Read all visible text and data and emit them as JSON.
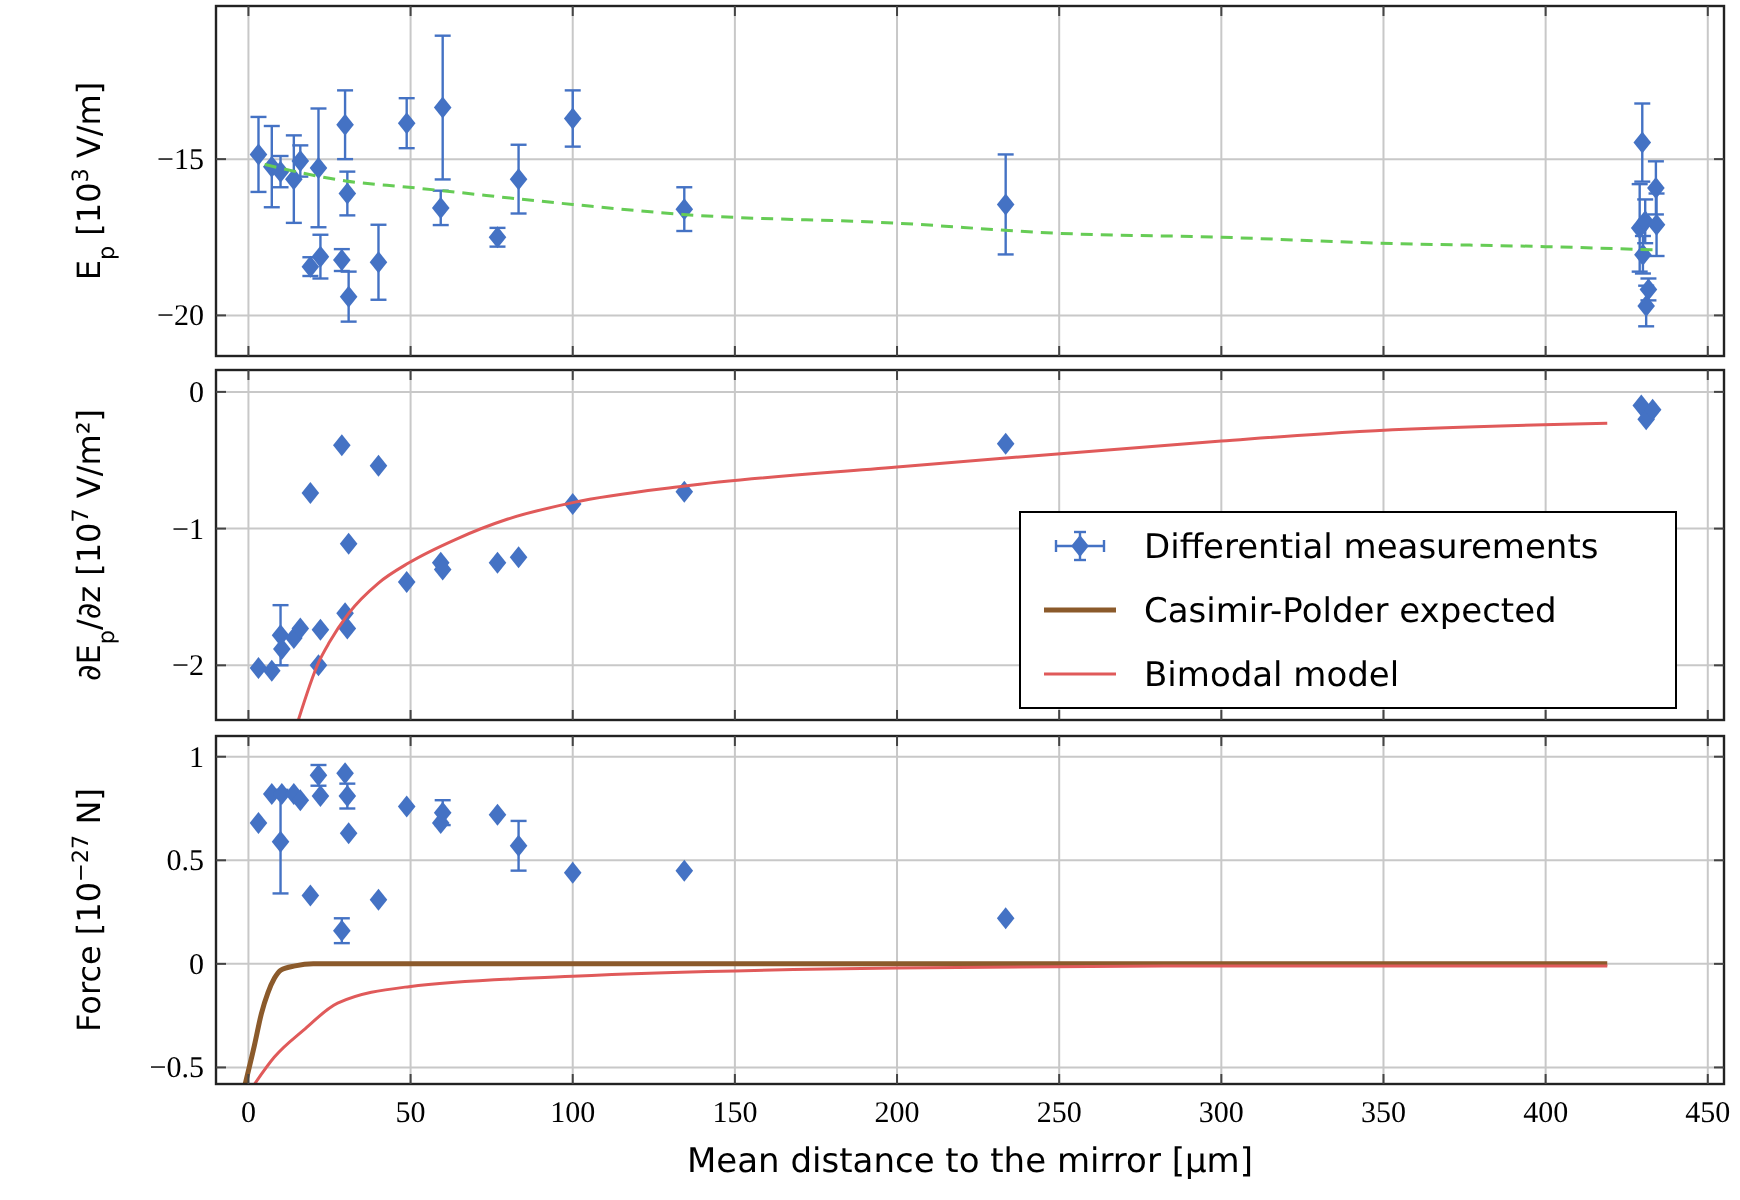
{
  "chart_data": [
    {
      "type": "scatter",
      "ylabel": "E$_{p}$ [10$^{3}$ V/m]",
      "xlim": [
        -10,
        455
      ],
      "xticks": [
        0,
        50,
        100,
        150,
        200,
        250,
        300,
        350,
        400,
        450
      ],
      "ylim": [
        -21.3,
        -10.1
      ],
      "yticks": [
        -20,
        -15
      ],
      "grid": true,
      "tick_labels": "y",
      "series": [
        {
          "marker": "diamond",
          "color": "#4472c4",
          "x": [
            3.1,
            7.2,
            9.9,
            14,
            16,
            21.6,
            29.8,
            30.5,
            19.1,
            22.2,
            28.8,
            30.9,
            40.1,
            48.8,
            59.3,
            59.9,
            76.8,
            83.3,
            100,
            134.4,
            233.5,
            429.8,
            434,
            429,
            430.7,
            434.2,
            430,
            431.7,
            431
          ],
          "values": [
            -14.85,
            -15.24,
            -15.4,
            -15.64,
            -15.06,
            -15.28,
            -13.9,
            -16.1,
            -18.44,
            -18.12,
            -18.23,
            -19.4,
            -18.3,
            -13.85,
            -16.56,
            -13.35,
            -17.5,
            -15.64,
            -13.7,
            -16.6,
            -16.45,
            -14.47,
            -15.92,
            -17.2,
            -16.99,
            -17.1,
            -18.06,
            -19.17,
            -19.7
          ],
          "errors": [
            1.2,
            1.3,
            0.5,
            1.4,
            0.5,
            1.9,
            1.1,
            0.7,
            0.3,
            0.7,
            0.35,
            0.8,
            1.2,
            0.8,
            0.55,
            2.3,
            0.3,
            1.1,
            0.9,
            0.7,
            1.6,
            1.25,
            0.85,
            1.4,
            0.7,
            1,
            0.6,
            0.35,
            0.65
          ]
        },
        {
          "type": "line",
          "color": "#66cc55",
          "line_style": "dashed",
          "x": [
            5,
            30,
            49.5,
            100,
            134,
            200,
            249,
            300,
            349,
            400,
            433
          ],
          "values": [
            -15.17,
            -15.7,
            -15.9,
            -16.45,
            -16.77,
            -17.05,
            -17.37,
            -17.5,
            -17.69,
            -17.8,
            -17.9
          ]
        }
      ]
    },
    {
      "type": "scatter",
      "ylabel": "∂E$_{p}$/∂z [10$^{7}$ V/m²]",
      "xlim": [
        -10,
        455
      ],
      "xticks": [
        0,
        50,
        100,
        150,
        200,
        250,
        300,
        350,
        400,
        450
      ],
      "ylim": [
        -2.4,
        0.16
      ],
      "yticks": [
        -2,
        -1,
        0
      ],
      "grid": true,
      "tick_labels": "y",
      "legend": "bottom right",
      "series": [
        {
          "marker": "diamond",
          "name": "Differential measurements",
          "color": "#4472c4",
          "x": [
            3.1,
            7.2,
            9.9,
            10.3,
            14,
            16,
            19.1,
            21.6,
            22.2,
            28.8,
            29.8,
            30.5,
            30.9,
            40.1,
            48.8,
            59.3,
            59.9,
            76.8,
            83.3,
            100,
            134.4,
            233.5,
            429.5,
            431,
            433
          ],
          "values": [
            -2.02,
            -2.04,
            -1.78,
            -1.88,
            -1.8,
            -1.73,
            -0.74,
            -2.0,
            -1.74,
            -0.39,
            -1.62,
            -1.73,
            -1.11,
            -0.54,
            -1.39,
            -1.25,
            -1.3,
            -1.25,
            -1.21,
            -0.82,
            -0.73,
            -0.38,
            -0.1,
            -0.2,
            -0.13
          ],
          "errors": [
            null,
            null,
            0.22,
            null,
            null,
            null,
            null,
            null,
            null,
            null,
            null,
            null,
            null,
            null,
            null,
            null,
            null,
            null,
            null,
            null,
            null,
            null,
            null,
            null,
            null
          ]
        },
        {
          "type": "line",
          "color": "#e05a5a",
          "x": [
            15.4,
            21.6,
            25,
            30.9,
            40,
            49.5,
            63.8,
            80,
            100,
            134,
            200,
            240.7,
            300,
            342.6,
            419
          ],
          "values": [
            -2.4,
            -1.98,
            -1.83,
            -1.62,
            -1.4,
            -1.25,
            -1.08,
            -0.93,
            -0.81,
            -0.69,
            -0.55,
            -0.47,
            -0.36,
            -0.29,
            -0.23
          ]
        }
      ]
    },
    {
      "type": "scatter",
      "ylabel": "Force [10$^{−27}$ N]",
      "xlabel": "Mean distance to the mirror [μm]",
      "xlim": [
        -10,
        455
      ],
      "xticks": [
        0,
        50,
        100,
        150,
        200,
        250,
        300,
        350,
        400,
        450
      ],
      "ylim": [
        -0.58,
        1.1
      ],
      "yticks": [
        -0.5,
        0,
        0.5,
        1
      ],
      "grid": true,
      "series": [
        {
          "marker": "diamond",
          "color": "#4472c4",
          "x": [
            3.1,
            7.2,
            9.9,
            10.3,
            14,
            16,
            19.1,
            21.6,
            22.2,
            28.8,
            29.8,
            30.5,
            30.9,
            40.1,
            48.8,
            59.3,
            59.9,
            76.8,
            83.3,
            100,
            134.4,
            233.5
          ],
          "values": [
            0.68,
            0.82,
            0.59,
            0.82,
            0.82,
            0.79,
            0.33,
            0.91,
            0.81,
            0.16,
            0.92,
            0.81,
            0.63,
            0.31,
            0.76,
            0.68,
            0.73,
            0.72,
            0.57,
            0.44,
            0.45,
            0.22
          ],
          "errors": [
            null,
            null,
            0.25,
            null,
            null,
            null,
            null,
            0.05,
            null,
            0.06,
            null,
            0.06,
            null,
            null,
            null,
            null,
            0.06,
            null,
            0.12,
            null,
            null,
            null
          ]
        },
        {
          "type": "line",
          "name": "Casimir-Polder expected",
          "color": "#8b5a2b",
          "x": [
            -1,
            1.9,
            4,
            6,
            8,
            10,
            14.4,
            20,
            100,
            419
          ],
          "values": [
            -0.58,
            -0.39,
            -0.24,
            -0.14,
            -0.07,
            -0.03,
            -0.01,
            0,
            0,
            0
          ]
        },
        {
          "type": "line",
          "name": "Bimodal model",
          "color": "#e05a5a",
          "x": [
            1.9,
            8,
            17,
            27.5,
            49.5,
            100,
            200,
            300,
            419
          ],
          "values": [
            -0.58,
            -0.45,
            -0.32,
            -0.19,
            -0.11,
            -0.06,
            -0.02,
            -0.01,
            -0.01
          ]
        }
      ]
    }
  ]
}
